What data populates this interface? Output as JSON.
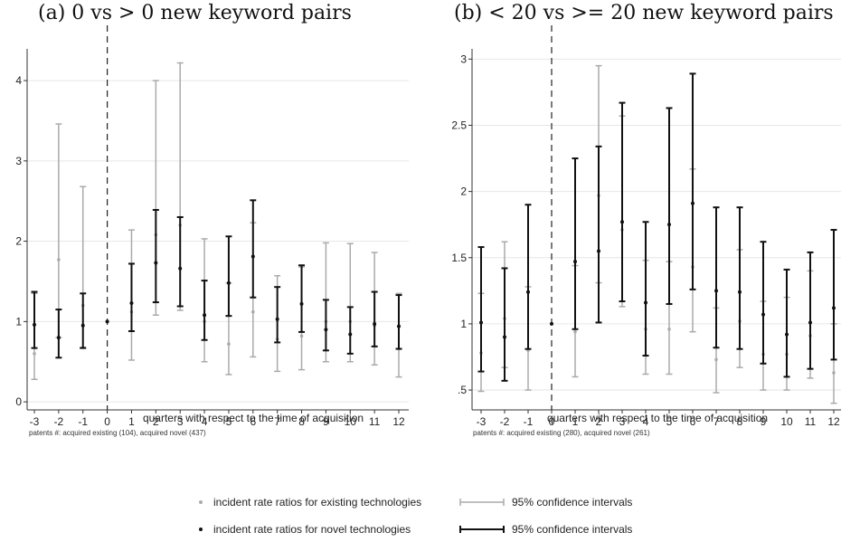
{
  "panels": {
    "a": {
      "title": "(a) 0 vs > 0 new keyword pairs",
      "xlabel": "quarters with respect to the time of acquisition",
      "note": "patents #: acquired existing (104), acquired novel (437)"
    },
    "b": {
      "title": "(b) < 20 vs >= 20 new keyword pairs",
      "xlabel": "quarters with respect to the time of acquisition",
      "note": "patents #: acquired existing (280), acquired novel (261)"
    }
  },
  "legend": {
    "existing_point": "incident rate ratios for existing technologies",
    "novel_point": "incident rate ratios for novel technologies",
    "existing_ci": "95% confidence intervals",
    "novel_ci": "95% confidence intervals"
  },
  "colors": {
    "existing": "#aaaaaa",
    "novel": "#111111",
    "grid": "#e6e6e6",
    "refline": "#222222"
  },
  "chart_data": [
    {
      "type": "scatter",
      "title": "(a) 0 vs > 0 new keyword pairs",
      "xlabel": "quarters with respect to the time of acquisition",
      "ylabel": "",
      "x": [
        -3,
        -2,
        -1,
        0,
        1,
        2,
        3,
        4,
        5,
        6,
        7,
        8,
        9,
        10,
        11,
        12
      ],
      "xlim": [
        -3.4,
        12.4
      ],
      "ylim": [
        -0.1,
        4.35
      ],
      "yticks": [
        0,
        1,
        2,
        3,
        4
      ],
      "ytick_labels": [
        "0",
        "1",
        "2",
        "3",
        "4"
      ],
      "grid": true,
      "vline_x": 0,
      "series": [
        {
          "name": "incident rate ratios for existing technologies",
          "points": [
            {
              "x": -3,
              "y": 0.6,
              "lo": 0.28,
              "hi": 1.35
            },
            {
              "x": -2,
              "y": 1.77,
              "lo": 0.8,
              "hi": 3.46
            },
            {
              "x": -1,
              "y": 1.2,
              "lo": 0.68,
              "hi": 2.68
            },
            {
              "x": 0,
              "y": 1.0,
              "lo": null,
              "hi": null
            },
            {
              "x": 1,
              "y": 1.12,
              "lo": 0.52,
              "hi": 2.14
            },
            {
              "x": 2,
              "y": 2.08,
              "lo": 1.08,
              "hi": 4.0
            },
            {
              "x": 3,
              "y": 2.2,
              "lo": 1.14,
              "hi": 4.22
            },
            {
              "x": 4,
              "y": 1.0,
              "lo": 0.5,
              "hi": 2.03
            },
            {
              "x": 5,
              "y": 0.72,
              "lo": 0.34,
              "hi": 1.48
            },
            {
              "x": 6,
              "y": 1.12,
              "lo": 0.56,
              "hi": 2.23
            },
            {
              "x": 7,
              "y": 0.78,
              "lo": 0.38,
              "hi": 1.57
            },
            {
              "x": 8,
              "y": 0.82,
              "lo": 0.4,
              "hi": 1.68
            },
            {
              "x": 9,
              "y": 1.0,
              "lo": 0.5,
              "hi": 1.98
            },
            {
              "x": 10,
              "y": 1.0,
              "lo": 0.5,
              "hi": 1.97
            },
            {
              "x": 11,
              "y": 0.95,
              "lo": 0.46,
              "hi": 1.86
            },
            {
              "x": 12,
              "y": 0.66,
              "lo": 0.31,
              "hi": 1.35
            }
          ]
        },
        {
          "name": "incident rate ratios for novel technologies",
          "points": [
            {
              "x": -3,
              "y": 0.96,
              "lo": 0.67,
              "hi": 1.37
            },
            {
              "x": -2,
              "y": 0.8,
              "lo": 0.55,
              "hi": 1.15
            },
            {
              "x": -1,
              "y": 0.95,
              "lo": 0.67,
              "hi": 1.35
            },
            {
              "x": 0,
              "y": 1.0,
              "lo": null,
              "hi": null
            },
            {
              "x": 1,
              "y": 1.23,
              "lo": 0.88,
              "hi": 1.72
            },
            {
              "x": 2,
              "y": 1.73,
              "lo": 1.24,
              "hi": 2.39
            },
            {
              "x": 3,
              "y": 1.66,
              "lo": 1.19,
              "hi": 2.3
            },
            {
              "x": 4,
              "y": 1.08,
              "lo": 0.77,
              "hi": 1.51
            },
            {
              "x": 5,
              "y": 1.48,
              "lo": 1.07,
              "hi": 2.06
            },
            {
              "x": 6,
              "y": 1.81,
              "lo": 1.3,
              "hi": 2.51
            },
            {
              "x": 7,
              "y": 1.03,
              "lo": 0.74,
              "hi": 1.43
            },
            {
              "x": 8,
              "y": 1.22,
              "lo": 0.87,
              "hi": 1.7
            },
            {
              "x": 9,
              "y": 0.9,
              "lo": 0.64,
              "hi": 1.27
            },
            {
              "x": 10,
              "y": 0.84,
              "lo": 0.6,
              "hi": 1.18
            },
            {
              "x": 11,
              "y": 0.97,
              "lo": 0.69,
              "hi": 1.37
            },
            {
              "x": 12,
              "y": 0.94,
              "lo": 0.66,
              "hi": 1.33
            }
          ]
        }
      ]
    },
    {
      "type": "scatter",
      "title": "(b) < 20 vs >= 20 new keyword pairs",
      "xlabel": "quarters with respect to the time of acquisition",
      "ylabel": "",
      "x": [
        -3,
        -2,
        -1,
        0,
        1,
        2,
        3,
        4,
        5,
        6,
        7,
        8,
        9,
        10,
        11,
        12
      ],
      "xlim": [
        -3.4,
        12.4
      ],
      "ylim": [
        0.35,
        3.05
      ],
      "yticks": [
        0.5,
        1,
        1.5,
        2,
        2.5,
        3
      ],
      "ytick_labels": [
        ".5",
        "1",
        "1.5",
        "2",
        "2.5",
        "3"
      ],
      "grid": true,
      "vline_x": 0,
      "series": [
        {
          "name": "incident rate ratios for existing technologies",
          "points": [
            {
              "x": -3,
              "y": 0.78,
              "lo": 0.49,
              "hi": 1.23
            },
            {
              "x": -2,
              "y": 1.04,
              "lo": 0.67,
              "hi": 1.62
            },
            {
              "x": -1,
              "y": 0.8,
              "lo": 0.5,
              "hi": 1.28
            },
            {
              "x": 0,
              "y": 1.0,
              "lo": null,
              "hi": null
            },
            {
              "x": 1,
              "y": 0.94,
              "lo": 0.6,
              "hi": 1.44
            },
            {
              "x": 2,
              "y": 1.97,
              "lo": 1.31,
              "hi": 2.95
            },
            {
              "x": 3,
              "y": 1.71,
              "lo": 1.13,
              "hi": 2.57
            },
            {
              "x": 4,
              "y": 0.96,
              "lo": 0.62,
              "hi": 1.48
            },
            {
              "x": 5,
              "y": 0.96,
              "lo": 0.62,
              "hi": 1.47
            },
            {
              "x": 6,
              "y": 1.43,
              "lo": 0.94,
              "hi": 2.17
            },
            {
              "x": 7,
              "y": 0.73,
              "lo": 0.48,
              "hi": 1.12
            },
            {
              "x": 8,
              "y": 1.02,
              "lo": 0.67,
              "hi": 1.56
            },
            {
              "x": 9,
              "y": 0.77,
              "lo": 0.5,
              "hi": 1.17
            },
            {
              "x": 10,
              "y": 0.77,
              "lo": 0.5,
              "hi": 1.2
            },
            {
              "x": 11,
              "y": 0.91,
              "lo": 0.59,
              "hi": 1.4
            },
            {
              "x": 12,
              "y": 0.63,
              "lo": 0.4,
              "hi": 1.0
            }
          ]
        },
        {
          "name": "incident rate ratios for novel technologies",
          "points": [
            {
              "x": -3,
              "y": 1.01,
              "lo": 0.64,
              "hi": 1.58
            },
            {
              "x": -2,
              "y": 0.9,
              "lo": 0.57,
              "hi": 1.42
            },
            {
              "x": -1,
              "y": 1.24,
              "lo": 0.81,
              "hi": 1.9
            },
            {
              "x": 0,
              "y": 1.0,
              "lo": null,
              "hi": null
            },
            {
              "x": 1,
              "y": 1.47,
              "lo": 0.96,
              "hi": 2.25
            },
            {
              "x": 2,
              "y": 1.55,
              "lo": 1.01,
              "hi": 2.34
            },
            {
              "x": 3,
              "y": 1.77,
              "lo": 1.17,
              "hi": 2.67
            },
            {
              "x": 4,
              "y": 1.16,
              "lo": 0.76,
              "hi": 1.77
            },
            {
              "x": 5,
              "y": 1.75,
              "lo": 1.15,
              "hi": 2.63
            },
            {
              "x": 6,
              "y": 1.91,
              "lo": 1.26,
              "hi": 2.89
            },
            {
              "x": 7,
              "y": 1.25,
              "lo": 0.82,
              "hi": 1.88
            },
            {
              "x": 8,
              "y": 1.24,
              "lo": 0.81,
              "hi": 1.88
            },
            {
              "x": 9,
              "y": 1.07,
              "lo": 0.7,
              "hi": 1.62
            },
            {
              "x": 10,
              "y": 0.92,
              "lo": 0.6,
              "hi": 1.41
            },
            {
              "x": 11,
              "y": 1.01,
              "lo": 0.66,
              "hi": 1.54
            },
            {
              "x": 12,
              "y": 1.12,
              "lo": 0.73,
              "hi": 1.71
            }
          ]
        }
      ]
    }
  ]
}
